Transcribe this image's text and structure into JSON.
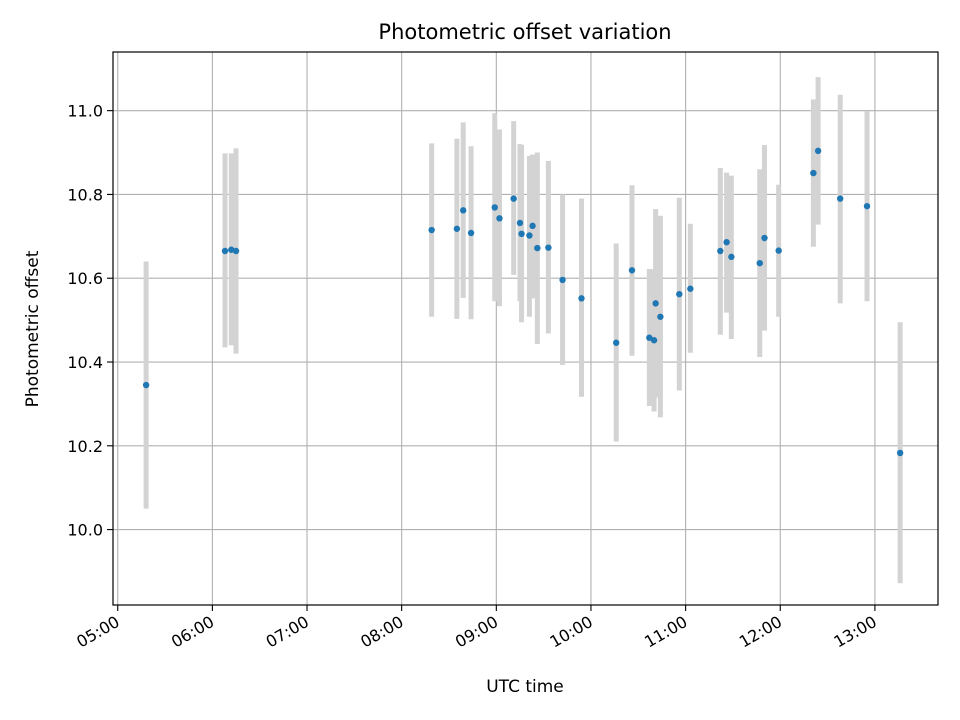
{
  "chart_data": {
    "type": "scatter",
    "title": "Photometric offset variation",
    "xlabel": "UTC time",
    "ylabel": "Photometric offset",
    "grid": true,
    "xlim": [
      "04:57",
      "13:40"
    ],
    "ylim": [
      9.82,
      11.14
    ],
    "xticks": [
      "05:00",
      "06:00",
      "07:00",
      "08:00",
      "09:00",
      "10:00",
      "11:00",
      "12:00",
      "13:00"
    ],
    "yticks": [
      "10.0",
      "10.2",
      "10.4",
      "10.6",
      "10.8",
      "11.0"
    ],
    "colors": {
      "points": "#1f77b4",
      "errorbars": "#d3d3d3",
      "grid": "#b0b0b0"
    },
    "points": [
      {
        "x": "05:18",
        "y": 10.345,
        "low": 10.05,
        "high": 10.64
      },
      {
        "x": "06:08",
        "y": 10.665,
        "low": 10.435,
        "high": 10.898
      },
      {
        "x": "06:12",
        "y": 10.668,
        "low": 10.44,
        "high": 10.898
      },
      {
        "x": "06:15",
        "y": 10.665,
        "low": 10.42,
        "high": 10.91
      },
      {
        "x": "08:19",
        "y": 10.715,
        "low": 10.508,
        "high": 10.922
      },
      {
        "x": "08:35",
        "y": 10.718,
        "low": 10.503,
        "high": 10.933
      },
      {
        "x": "08:39",
        "y": 10.762,
        "low": 10.553,
        "high": 10.972
      },
      {
        "x": "08:44",
        "y": 10.708,
        "low": 10.502,
        "high": 10.915
      },
      {
        "x": "08:59",
        "y": 10.769,
        "low": 10.545,
        "high": 10.994
      },
      {
        "x": "09:02",
        "y": 10.743,
        "low": 10.533,
        "high": 10.955
      },
      {
        "x": "09:11",
        "y": 10.79,
        "low": 10.608,
        "high": 10.975
      },
      {
        "x": "09:15",
        "y": 10.732,
        "low": 10.545,
        "high": 10.92
      },
      {
        "x": "09:16",
        "y": 10.706,
        "low": 10.495,
        "high": 10.918
      },
      {
        "x": "09:21",
        "y": 10.702,
        "low": 10.508,
        "high": 10.892
      },
      {
        "x": "09:23",
        "y": 10.725,
        "low": 10.552,
        "high": 10.895
      },
      {
        "x": "09:26",
        "y": 10.672,
        "low": 10.443,
        "high": 10.9
      },
      {
        "x": "09:33",
        "y": 10.673,
        "low": 10.468,
        "high": 10.88
      },
      {
        "x": "09:42",
        "y": 10.596,
        "low": 10.393,
        "high": 10.8
      },
      {
        "x": "09:54",
        "y": 10.552,
        "low": 10.317,
        "high": 10.79
      },
      {
        "x": "10:16",
        "y": 10.446,
        "low": 10.21,
        "high": 10.683
      },
      {
        "x": "10:26",
        "y": 10.619,
        "low": 10.415,
        "high": 10.822
      },
      {
        "x": "10:37",
        "y": 10.458,
        "low": 10.295,
        "high": 10.622
      },
      {
        "x": "10:40",
        "y": 10.452,
        "low": 10.282,
        "high": 10.621
      },
      {
        "x": "10:41",
        "y": 10.54,
        "low": 10.315,
        "high": 10.765
      },
      {
        "x": "10:44",
        "y": 10.508,
        "low": 10.268,
        "high": 10.749
      },
      {
        "x": "10:56",
        "y": 10.562,
        "low": 10.332,
        "high": 10.792
      },
      {
        "x": "11:03",
        "y": 10.575,
        "low": 10.422,
        "high": 10.73
      },
      {
        "x": "11:22",
        "y": 10.665,
        "low": 10.465,
        "high": 10.863
      },
      {
        "x": "11:26",
        "y": 10.686,
        "low": 10.518,
        "high": 10.852
      },
      {
        "x": "11:29",
        "y": 10.651,
        "low": 10.455,
        "high": 10.845
      },
      {
        "x": "11:47",
        "y": 10.636,
        "low": 10.412,
        "high": 10.86
      },
      {
        "x": "11:50",
        "y": 10.696,
        "low": 10.475,
        "high": 10.918
      },
      {
        "x": "11:59",
        "y": 10.666,
        "low": 10.508,
        "high": 10.823
      },
      {
        "x": "12:21",
        "y": 10.851,
        "low": 10.675,
        "high": 11.027
      },
      {
        "x": "12:24",
        "y": 10.904,
        "low": 10.728,
        "high": 11.08
      },
      {
        "x": "12:38",
        "y": 10.79,
        "low": 10.54,
        "high": 11.038
      },
      {
        "x": "12:55",
        "y": 10.772,
        "low": 10.545,
        "high": 10.998
      },
      {
        "x": "13:16",
        "y": 10.183,
        "low": 9.872,
        "high": 10.495
      }
    ]
  }
}
